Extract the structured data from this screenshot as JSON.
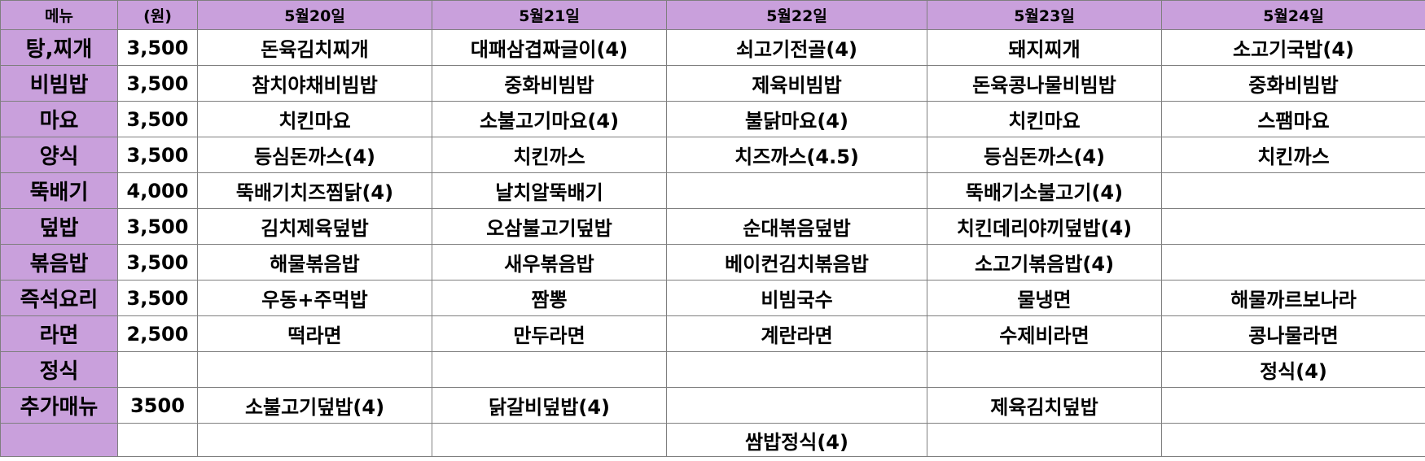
{
  "header": {
    "menu": "메뉴",
    "price": "(원)",
    "days": [
      "5월20일",
      "5월21일",
      "5월22일",
      "5월23일",
      "5월24일"
    ]
  },
  "rows": [
    {
      "category": "탕,찌개",
      "price": "3,500",
      "items": [
        "돈육김치찌개",
        "대패삼겹짜글이(4)",
        "쇠고기전골(4)",
        "돼지찌개",
        "소고기국밥(4)"
      ]
    },
    {
      "category": "비빔밥",
      "price": "3,500",
      "items": [
        "참치야채비빔밥",
        "중화비빔밥",
        "제육비빔밥",
        "돈육콩나물비빔밥",
        "중화비빔밥"
      ]
    },
    {
      "category": "마요",
      "price": "3,500",
      "items": [
        "치킨마요",
        "소불고기마요(4)",
        "불닭마요(4)",
        "치킨마요",
        "스팸마요"
      ]
    },
    {
      "category": "양식",
      "price": "3,500",
      "items": [
        "등심돈까스(4)",
        "치킨까스",
        "치즈까스(4.5)",
        "등심돈까스(4)",
        "치킨까스"
      ]
    },
    {
      "category": "뚝배기",
      "price": "4,000",
      "items": [
        "뚝배기치즈찜닭(4)",
        "날치알뚝배기",
        "",
        "뚝배기소불고기(4)",
        ""
      ]
    },
    {
      "category": "덮밥",
      "price": "3,500",
      "items": [
        "김치제육덮밥",
        "오삼불고기덮밥",
        "순대볶음덮밥",
        "치킨데리야끼덮밥(4)",
        ""
      ]
    },
    {
      "category": "볶음밥",
      "price": "3,500",
      "items": [
        "해물볶음밥",
        "새우볶음밥",
        "베이컨김치볶음밥",
        "소고기볶음밥(4)",
        ""
      ]
    },
    {
      "category": "즉석요리",
      "price": "3,500",
      "items": [
        "우동+주먹밥",
        "짬뽕",
        "비빔국수",
        "물냉면",
        "해물까르보나라"
      ]
    },
    {
      "category": "라면",
      "price": "2,500",
      "items": [
        "떡라면",
        "만두라면",
        "계란라면",
        "수제비라면",
        "콩나물라면"
      ]
    },
    {
      "category": "정식",
      "price": "",
      "items": [
        "",
        "",
        "",
        "",
        "정식(4)"
      ]
    },
    {
      "category": "추가매뉴",
      "price": "3500",
      "items": [
        "소불고기덮밥(4)",
        "닭갈비덮밥(4)",
        "",
        "제육김치덮밥",
        ""
      ]
    },
    {
      "category": "",
      "price": "",
      "items": [
        "",
        "",
        "쌈밥정식(4)",
        "",
        ""
      ]
    }
  ]
}
